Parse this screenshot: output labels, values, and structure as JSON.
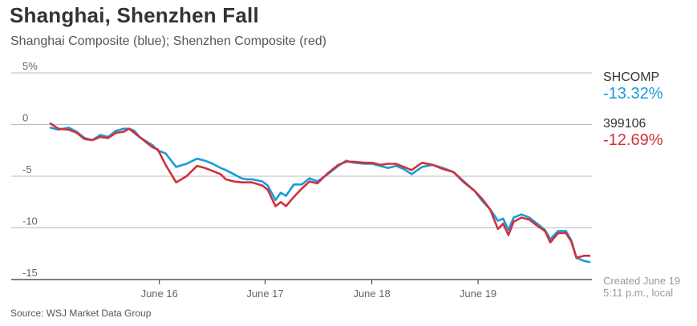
{
  "title": "Shanghai, Shenzhen Fall",
  "subtitle": "Shanghai Composite (blue); Shenzhen Composite (red)",
  "legend": [
    {
      "name": "SHCOMP",
      "value": "-13.32%",
      "color": "#1a9ad6"
    },
    {
      "name": "399106",
      "value": "-12.69%",
      "color": "#d0313b"
    }
  ],
  "created": {
    "line1": "Created June 19",
    "line2": "5:11 p.m., local"
  },
  "source": "Source: WSJ Market Data Group",
  "chart_data": {
    "type": "line",
    "ylim": [
      -15,
      5
    ],
    "yticks": [
      5,
      0,
      -5,
      -10,
      -15
    ],
    "ytick_labels": [
      "5%",
      "0",
      "-5",
      "-10",
      "-15"
    ],
    "xlim": [
      0,
      100
    ],
    "xticks": [
      {
        "x": 20.8,
        "label": "June 16"
      },
      {
        "x": 41.0,
        "label": "June 17"
      },
      {
        "x": 61.4,
        "label": "June 18"
      },
      {
        "x": 81.7,
        "label": "June 19"
      }
    ],
    "grid": true,
    "series": [
      {
        "color": "#1a9ad6",
        "values": [
          [
            0,
            -0.3
          ],
          [
            1.5,
            -0.5
          ],
          [
            3.5,
            -0.3
          ],
          [
            5,
            -0.7
          ],
          [
            6.5,
            -1.3
          ],
          [
            8,
            -1.5
          ],
          [
            9.5,
            -1.0
          ],
          [
            11,
            -1.2
          ],
          [
            12.5,
            -0.6
          ],
          [
            14,
            -0.4
          ],
          [
            15,
            -0.4
          ],
          [
            16,
            -0.6
          ],
          [
            17,
            -1.2
          ],
          [
            18.5,
            -1.7
          ],
          [
            19.5,
            -2.0
          ],
          [
            20.5,
            -2.5
          ],
          [
            22,
            -2.8
          ],
          [
            24,
            -4.1
          ],
          [
            26,
            -3.8
          ],
          [
            28,
            -3.3
          ],
          [
            29.5,
            -3.5
          ],
          [
            31,
            -3.8
          ],
          [
            32.5,
            -4.2
          ],
          [
            33.5,
            -4.4
          ],
          [
            35,
            -4.8
          ],
          [
            36.5,
            -5.2
          ],
          [
            37.5,
            -5.3
          ],
          [
            38.5,
            -5.3
          ],
          [
            40.5,
            -5.5
          ],
          [
            41.5,
            -5.9
          ],
          [
            43,
            -7.3
          ],
          [
            44,
            -6.6
          ],
          [
            45,
            -6.9
          ],
          [
            46.5,
            -5.8
          ],
          [
            48,
            -5.8
          ],
          [
            49.5,
            -5.2
          ],
          [
            51,
            -5.5
          ],
          [
            53,
            -4.8
          ],
          [
            55,
            -4.0
          ],
          [
            56.5,
            -3.5
          ],
          [
            58,
            -3.7
          ],
          [
            60,
            -3.8
          ],
          [
            61.5,
            -3.8
          ],
          [
            63,
            -4.0
          ],
          [
            64.5,
            -4.2
          ],
          [
            66,
            -4.0
          ],
          [
            67.5,
            -4.3
          ],
          [
            69,
            -4.8
          ],
          [
            71,
            -4.1
          ],
          [
            73,
            -3.9
          ],
          [
            75,
            -4.2
          ],
          [
            77,
            -4.6
          ],
          [
            79,
            -5.5
          ],
          [
            81,
            -6.4
          ],
          [
            82.5,
            -7.4
          ],
          [
            84,
            -8.2
          ],
          [
            85.5,
            -9.3
          ],
          [
            86.5,
            -9.1
          ],
          [
            87.5,
            -10.2
          ],
          [
            88.5,
            -9.0
          ],
          [
            90,
            -8.7
          ],
          [
            91.5,
            -9.0
          ],
          [
            93,
            -9.6
          ],
          [
            94.5,
            -10.2
          ],
          [
            95.5,
            -11.1
          ],
          [
            97,
            -10.3
          ],
          [
            98.5,
            -10.3
          ],
          [
            99.5,
            -11.2
          ],
          [
            100.5,
            -12.9
          ],
          [
            102,
            -13.2
          ],
          [
            103,
            -13.3
          ]
        ]
      },
      {
        "color": "#d0313b",
        "values": [
          [
            0,
            0.1
          ],
          [
            1.5,
            -0.4
          ],
          [
            3.5,
            -0.5
          ],
          [
            5,
            -0.8
          ],
          [
            6.5,
            -1.4
          ],
          [
            8,
            -1.5
          ],
          [
            9.5,
            -1.2
          ],
          [
            11,
            -1.3
          ],
          [
            12.5,
            -0.8
          ],
          [
            14,
            -0.7
          ],
          [
            15,
            -0.4
          ],
          [
            16,
            -0.8
          ],
          [
            17,
            -1.2
          ],
          [
            18.5,
            -1.8
          ],
          [
            19.5,
            -2.2
          ],
          [
            20.5,
            -2.4
          ],
          [
            22,
            -3.9
          ],
          [
            24,
            -5.6
          ],
          [
            26,
            -5.0
          ],
          [
            28,
            -4.0
          ],
          [
            29.5,
            -4.2
          ],
          [
            31,
            -4.5
          ],
          [
            32.5,
            -4.8
          ],
          [
            33.5,
            -5.3
          ],
          [
            35,
            -5.5
          ],
          [
            36.5,
            -5.6
          ],
          [
            37.5,
            -5.6
          ],
          [
            38.5,
            -5.6
          ],
          [
            40.5,
            -5.9
          ],
          [
            41.5,
            -6.3
          ],
          [
            43,
            -7.9
          ],
          [
            44,
            -7.5
          ],
          [
            45,
            -7.9
          ],
          [
            46.5,
            -7.0
          ],
          [
            48,
            -6.2
          ],
          [
            49.5,
            -5.5
          ],
          [
            51,
            -5.7
          ],
          [
            53,
            -4.7
          ],
          [
            55,
            -3.9
          ],
          [
            56.5,
            -3.6
          ],
          [
            58,
            -3.6
          ],
          [
            60,
            -3.7
          ],
          [
            61.5,
            -3.7
          ],
          [
            63,
            -3.9
          ],
          [
            64.5,
            -3.8
          ],
          [
            66,
            -3.8
          ],
          [
            67.5,
            -4.1
          ],
          [
            69,
            -4.4
          ],
          [
            71,
            -3.7
          ],
          [
            73,
            -3.9
          ],
          [
            75,
            -4.3
          ],
          [
            77,
            -4.6
          ],
          [
            79,
            -5.6
          ],
          [
            81,
            -6.4
          ],
          [
            82.5,
            -7.2
          ],
          [
            84,
            -8.2
          ],
          [
            85.5,
            -10.1
          ],
          [
            86.5,
            -9.6
          ],
          [
            87.5,
            -10.7
          ],
          [
            88.5,
            -9.4
          ],
          [
            90,
            -9.0
          ],
          [
            91.5,
            -9.2
          ],
          [
            93,
            -9.8
          ],
          [
            94.5,
            -10.3
          ],
          [
            95.5,
            -11.4
          ],
          [
            97,
            -10.5
          ],
          [
            98.5,
            -10.5
          ],
          [
            99.5,
            -11.3
          ],
          [
            100.5,
            -12.9
          ],
          [
            102,
            -12.7
          ],
          [
            103,
            -12.7
          ]
        ]
      }
    ]
  }
}
